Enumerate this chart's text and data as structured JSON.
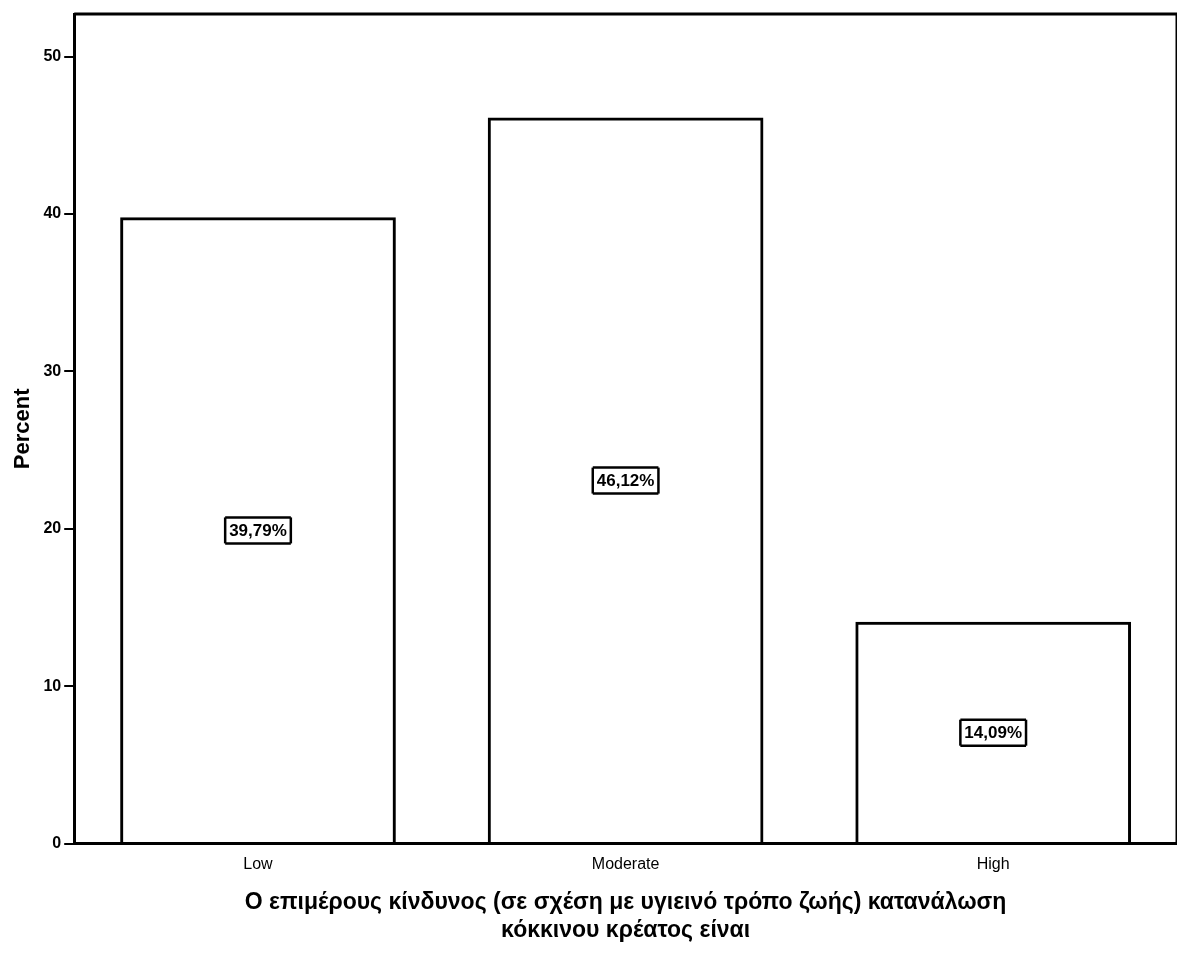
{
  "chart_data": {
    "type": "bar",
    "categories": [
      "Low",
      "Moderate",
      "High"
    ],
    "values": [
      39.79,
      46.12,
      14.09
    ],
    "value_labels": [
      "39,79%",
      "46,12%",
      "14,09%"
    ],
    "color": "#000000",
    "ylabel": "Percent",
    "xlabel": "Ο επιμέρους κίνδυνος (σε σχέση με υγιεινό τρόπο ζωής) κατανάλωση κόκκινου κρέατος είναι",
    "ylim": [
      0,
      52.7
    ],
    "yticks": [
      0,
      10,
      20,
      30,
      40,
      50
    ],
    "grid": false,
    "legend": false
  }
}
